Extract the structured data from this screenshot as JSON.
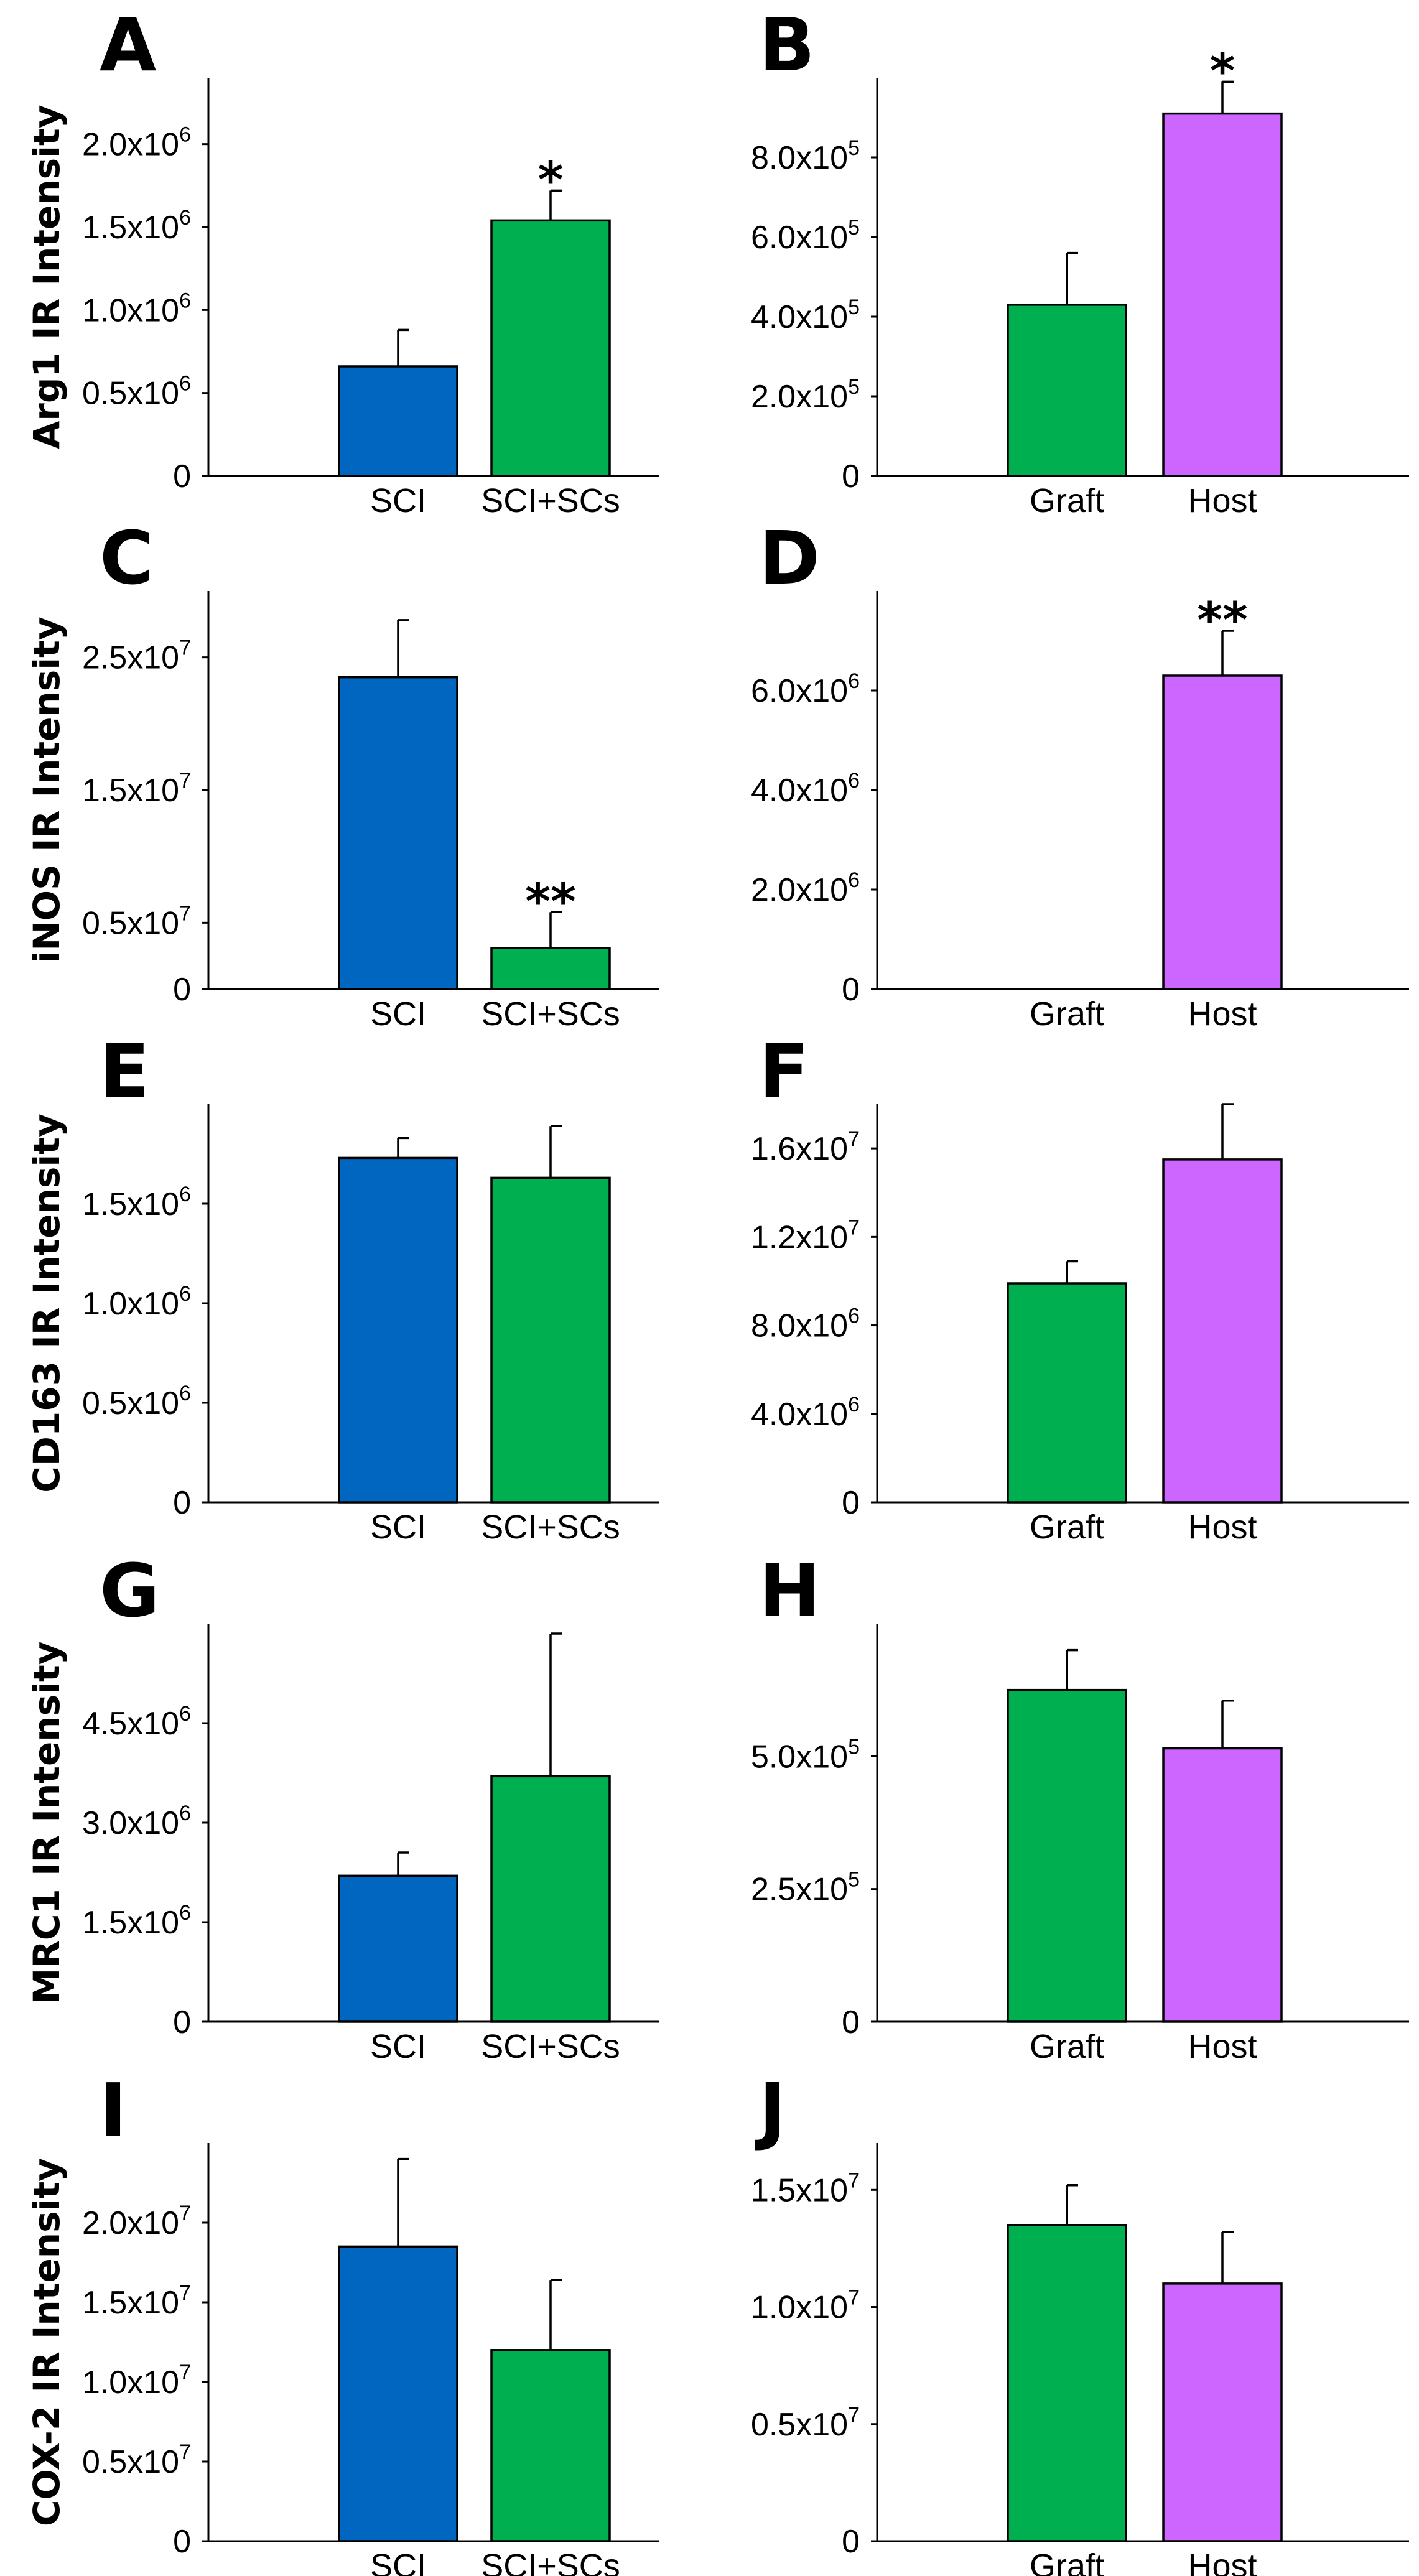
{
  "colors": {
    "SCI": "#0066c0",
    "SCI+SCs": "#00b050",
    "Graft": "#00b050",
    "Host": "#cc66ff"
  },
  "chart_data": [
    {
      "id": "A",
      "type": "bar",
      "letter": "A",
      "ylabel": "Arg1 IR Intensity",
      "categories": [
        "SCI",
        "SCI+SCs"
      ],
      "values": [
        660000,
        1540000
      ],
      "errors": [
        220000,
        180000
      ],
      "significance": [
        "",
        "*"
      ],
      "ylim": [
        0,
        2400000
      ],
      "yticks": [
        {
          "value": 0,
          "base": "0",
          "exp": ""
        },
        {
          "value": 500000,
          "base": "0.5x10",
          "exp": "6"
        },
        {
          "value": 1000000,
          "base": "1.0x10",
          "exp": "6"
        },
        {
          "value": 1500000,
          "base": "1.5x10",
          "exp": "6"
        },
        {
          "value": 2000000,
          "base": "2.0x10",
          "exp": "6"
        }
      ]
    },
    {
      "id": "B",
      "type": "bar",
      "letter": "B",
      "ylabel": "",
      "categories": [
        "Graft",
        "Host"
      ],
      "values": [
        430000,
        910000
      ],
      "errors": [
        130000,
        80000
      ],
      "significance": [
        "",
        "*"
      ],
      "ylim": [
        0,
        1000000
      ],
      "yticks": [
        {
          "value": 0,
          "base": "0",
          "exp": ""
        },
        {
          "value": 200000,
          "base": "2.0x10",
          "exp": "5"
        },
        {
          "value": 400000,
          "base": "4.0x10",
          "exp": "5"
        },
        {
          "value": 600000,
          "base": "6.0x10",
          "exp": "5"
        },
        {
          "value": 800000,
          "base": "8.0x10",
          "exp": "5"
        }
      ]
    },
    {
      "id": "C",
      "type": "bar",
      "letter": "C",
      "ylabel": "iNOS IR Intensity",
      "categories": [
        "SCI",
        "SCI+SCs"
      ],
      "values": [
        23500000,
        3100000
      ],
      "errors": [
        4300000,
        2700000
      ],
      "significance": [
        "",
        "**"
      ],
      "ylim": [
        0,
        30000000
      ],
      "yticks": [
        {
          "value": 0,
          "base": "0",
          "exp": ""
        },
        {
          "value": 5000000,
          "base": "0.5x10",
          "exp": "7"
        },
        {
          "value": 15000000,
          "base": "1.5x10",
          "exp": "7"
        },
        {
          "value": 25000000,
          "base": "2.5x10",
          "exp": "7"
        }
      ]
    },
    {
      "id": "D",
      "type": "bar",
      "letter": "D",
      "ylabel": "",
      "categories": [
        "Graft",
        "Host"
      ],
      "values": [
        0,
        6300000
      ],
      "errors": [
        0,
        900000
      ],
      "significance": [
        "",
        "**"
      ],
      "ylim": [
        0,
        8000000
      ],
      "yticks": [
        {
          "value": 0,
          "base": "0",
          "exp": ""
        },
        {
          "value": 2000000,
          "base": "2.0x10",
          "exp": "6"
        },
        {
          "value": 4000000,
          "base": "4.0x10",
          "exp": "6"
        },
        {
          "value": 6000000,
          "base": "6.0x10",
          "exp": "6"
        }
      ]
    },
    {
      "id": "E",
      "type": "bar",
      "letter": "E",
      "ylabel": "CD163 IR Intensity",
      "categories": [
        "SCI",
        "SCI+SCs"
      ],
      "values": [
        1730000,
        1630000
      ],
      "errors": [
        100000,
        260000
      ],
      "significance": [
        "",
        ""
      ],
      "ylim": [
        0,
        2000000
      ],
      "yticks": [
        {
          "value": 0,
          "base": "0",
          "exp": ""
        },
        {
          "value": 500000,
          "base": "0.5x10",
          "exp": "6"
        },
        {
          "value": 1000000,
          "base": "1.0x10",
          "exp": "6"
        },
        {
          "value": 1500000,
          "base": "1.5x10",
          "exp": "6"
        }
      ]
    },
    {
      "id": "F",
      "type": "bar",
      "letter": "F",
      "ylabel": "",
      "categories": [
        "Graft",
        "Host"
      ],
      "values": [
        9900000,
        15500000
      ],
      "errors": [
        1000000,
        2500000
      ],
      "significance": [
        "",
        ""
      ],
      "ylim": [
        0,
        18000000
      ],
      "yticks": [
        {
          "value": 0,
          "base": "0",
          "exp": ""
        },
        {
          "value": 4000000,
          "base": "4.0x10",
          "exp": "6"
        },
        {
          "value": 8000000,
          "base": "8.0x10",
          "exp": "6"
        },
        {
          "value": 12000000,
          "base": "1.2x10",
          "exp": "7"
        },
        {
          "value": 16000000,
          "base": "1.6x10",
          "exp": "7"
        }
      ]
    },
    {
      "id": "G",
      "type": "bar",
      "letter": "G",
      "ylabel": "MRC1 IR Intensity",
      "categories": [
        "SCI",
        "SCI+SCs"
      ],
      "values": [
        2200000,
        3700000
      ],
      "errors": [
        350000,
        2150000
      ],
      "significance": [
        "",
        ""
      ],
      "ylim": [
        0,
        6000000
      ],
      "yticks": [
        {
          "value": 0,
          "base": "0",
          "exp": ""
        },
        {
          "value": 1500000,
          "base": "1.5x10",
          "exp": "6"
        },
        {
          "value": 3000000,
          "base": "3.0x10",
          "exp": "6"
        },
        {
          "value": 4500000,
          "base": "4.5x10",
          "exp": "6"
        }
      ]
    },
    {
      "id": "H",
      "type": "bar",
      "letter": "H",
      "ylabel": "",
      "categories": [
        "Graft",
        "Host"
      ],
      "values": [
        625000,
        515000
      ],
      "errors": [
        75000,
        90000
      ],
      "significance": [
        "",
        ""
      ],
      "ylim": [
        0,
        750000
      ],
      "yticks": [
        {
          "value": 0,
          "base": "0",
          "exp": ""
        },
        {
          "value": 250000,
          "base": "2.5x10",
          "exp": "5"
        },
        {
          "value": 500000,
          "base": "5.0x10",
          "exp": "5"
        }
      ]
    },
    {
      "id": "I",
      "type": "bar",
      "letter": "I",
      "ylabel": "COX-2 IR Intensity",
      "categories": [
        "SCI",
        "SCI+SCs"
      ],
      "values": [
        18500000,
        12000000
      ],
      "errors": [
        5500000,
        4400000
      ],
      "significance": [
        "",
        ""
      ],
      "ylim": [
        0,
        25000000
      ],
      "yticks": [
        {
          "value": 0,
          "base": "0",
          "exp": ""
        },
        {
          "value": 5000000,
          "base": "0.5x10",
          "exp": "7"
        },
        {
          "value": 10000000,
          "base": "1.0x10",
          "exp": "7"
        },
        {
          "value": 15000000,
          "base": "1.5x10",
          "exp": "7"
        },
        {
          "value": 20000000,
          "base": "2.0x10",
          "exp": "7"
        }
      ]
    },
    {
      "id": "J",
      "type": "bar",
      "letter": "J",
      "ylabel": "",
      "categories": [
        "Graft",
        "Host"
      ],
      "values": [
        13500000,
        11000000
      ],
      "errors": [
        1700000,
        2200000
      ],
      "significance": [
        "",
        ""
      ],
      "ylim": [
        0,
        17000000
      ],
      "yticks": [
        {
          "value": 0,
          "base": "0",
          "exp": ""
        },
        {
          "value": 5000000,
          "base": "0.5x10",
          "exp": "7"
        },
        {
          "value": 10000000,
          "base": "1.0x10",
          "exp": "7"
        },
        {
          "value": 15000000,
          "base": "1.5x10",
          "exp": "7"
        }
      ]
    }
  ]
}
